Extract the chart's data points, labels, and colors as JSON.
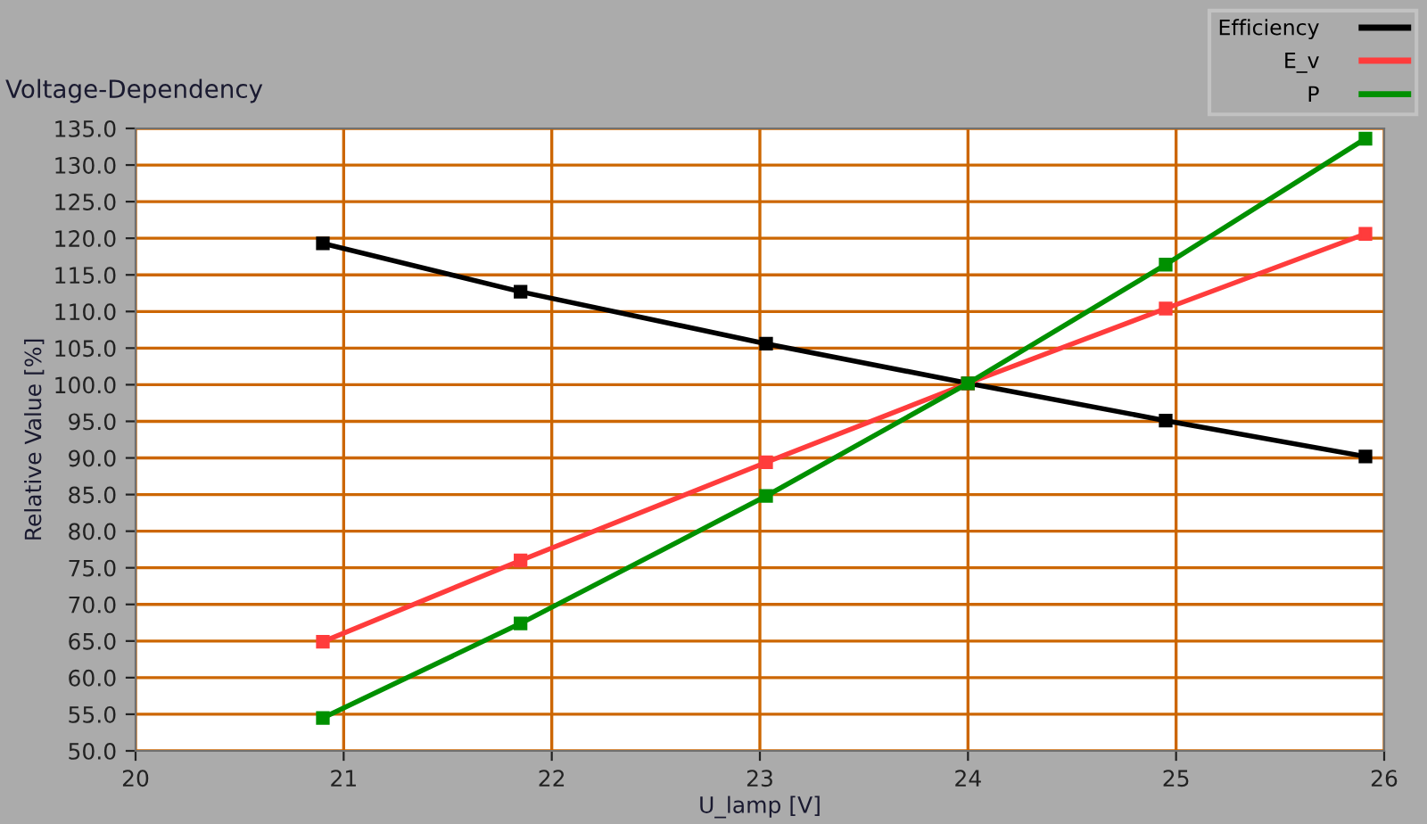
{
  "chart_data": {
    "type": "line",
    "title": "Voltage-Dependency",
    "xlabel": "U_lamp [V]",
    "ylabel": "Relative Value [%]",
    "x": [
      20.9,
      21.85,
      23.03,
      24.0,
      24.95,
      25.91
    ],
    "series": [
      {
        "name": "Efficiency",
        "color": "#000000",
        "values": [
          119.3,
          112.7,
          105.6,
          100.2,
          95.1,
          90.2
        ]
      },
      {
        "name": "E_v",
        "color": "#ff3c3c",
        "values": [
          64.9,
          76.0,
          89.4,
          100.2,
          110.4,
          120.6
        ]
      },
      {
        "name": "P",
        "color": "#009000",
        "values": [
          54.5,
          67.4,
          84.8,
          100.2,
          116.4,
          133.6
        ]
      }
    ],
    "xlim": [
      20,
      26
    ],
    "xticks": [
      20,
      21,
      22,
      23,
      24,
      25,
      26
    ],
    "ylim": [
      50,
      135
    ],
    "yticks": [
      {
        "value": 50,
        "label": "50.0"
      },
      {
        "value": 55,
        "label": "55.0"
      },
      {
        "value": 60,
        "label": "60.0"
      },
      {
        "value": 65,
        "label": "65.0"
      },
      {
        "value": 70,
        "label": "70.0"
      },
      {
        "value": 75,
        "label": "75.0"
      },
      {
        "value": 80,
        "label": "80.0"
      },
      {
        "value": 85,
        "label": "85.0"
      },
      {
        "value": 90,
        "label": "90.0"
      },
      {
        "value": 95,
        "label": "95.0"
      },
      {
        "value": 100,
        "label": "100.0"
      },
      {
        "value": 105,
        "label": "105.0"
      },
      {
        "value": 110,
        "label": "110.0"
      },
      {
        "value": 115,
        "label": "115.0"
      },
      {
        "value": 120,
        "label": "120.0"
      },
      {
        "value": 125,
        "label": "125.0"
      },
      {
        "value": 130,
        "label": "130.0"
      },
      {
        "value": 135,
        "label": "135.0"
      }
    ],
    "grid": true,
    "legend": "top right",
    "marker": "square",
    "line_style": "solid"
  }
}
